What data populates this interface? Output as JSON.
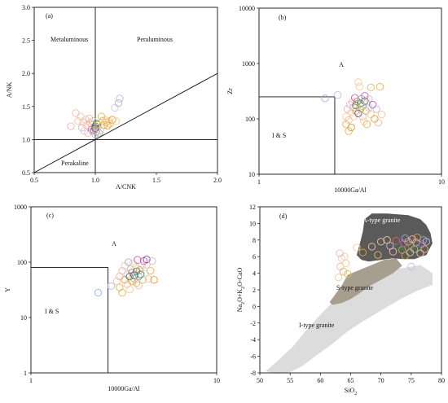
{
  "chart_data": [
    {
      "type": "scatter",
      "panel_label": "(a)",
      "xlabel": "A/CNK",
      "ylabel": "A/NK",
      "xlim": [
        0.5,
        2.0
      ],
      "ylim": [
        0.5,
        3.0
      ],
      "xticks": [
        "0.5",
        "1.0",
        "1.5",
        "2.0"
      ],
      "yticks": [
        "0.5",
        "1.0",
        "1.5",
        "2.0",
        "2.5",
        "3.0"
      ],
      "divider_vertical_x": 1.0,
      "divider_horizontal_y": 1.0,
      "divider_line": [
        [
          0.5,
          0.5
        ],
        [
          2.0,
          2.0
        ]
      ],
      "regions": [
        "Metaluminous",
        "Peraluminous",
        "Perakaline"
      ],
      "points": [
        {
          "x": 0.8,
          "y": 1.2,
          "c": "#f2b8b0"
        },
        {
          "x": 0.84,
          "y": 1.4,
          "c": "#f2b8b0"
        },
        {
          "x": 0.86,
          "y": 1.28,
          "c": "#f5c9a0"
        },
        {
          "x": 0.88,
          "y": 1.35,
          "c": "#f5c9a0"
        },
        {
          "x": 0.89,
          "y": 1.18,
          "c": "#d9b8e0"
        },
        {
          "x": 0.9,
          "y": 1.26,
          "c": "#f2b8b0"
        },
        {
          "x": 0.91,
          "y": 1.13,
          "c": "#f2b8b0"
        },
        {
          "x": 0.92,
          "y": 1.3,
          "c": "#f5c9a0"
        },
        {
          "x": 0.93,
          "y": 1.22,
          "c": "#f5c9a0"
        },
        {
          "x": 0.94,
          "y": 1.1,
          "c": "#f2b8b0"
        },
        {
          "x": 0.95,
          "y": 1.32,
          "c": "#f2b8b0"
        },
        {
          "x": 0.96,
          "y": 1.25,
          "c": "#d9b8e0"
        },
        {
          "x": 0.97,
          "y": 1.15,
          "c": "#c060c0"
        },
        {
          "x": 0.97,
          "y": 1.22,
          "c": "#f5c9a0"
        },
        {
          "x": 0.98,
          "y": 1.12,
          "c": "#c0c0e0"
        },
        {
          "x": 0.98,
          "y": 1.28,
          "c": "#f2b8b0"
        },
        {
          "x": 0.99,
          "y": 1.19,
          "c": "#d9b8e0"
        },
        {
          "x": 0.99,
          "y": 1.14,
          "c": "#e06c3a"
        },
        {
          "x": 1.0,
          "y": 1.2,
          "c": "#2e8b57"
        },
        {
          "x": 1.0,
          "y": 1.16,
          "c": "#e8a02c"
        },
        {
          "x": 1.01,
          "y": 1.24,
          "c": "#2e8b57"
        },
        {
          "x": 1.01,
          "y": 1.12,
          "c": "#8fb0d8"
        },
        {
          "x": 1.02,
          "y": 1.18,
          "c": "#c0c0e0"
        },
        {
          "x": 1.02,
          "y": 1.22,
          "c": "#e8a02c"
        },
        {
          "x": 1.03,
          "y": 1.1,
          "c": "#a0c080"
        },
        {
          "x": 1.0,
          "y": 1.17,
          "c": "#6b4e9b"
        },
        {
          "x": 1.05,
          "y": 1.35,
          "c": "#e8b85a"
        },
        {
          "x": 1.06,
          "y": 1.28,
          "c": "#e8b85a"
        },
        {
          "x": 1.07,
          "y": 1.22,
          "c": "#e8a02c"
        },
        {
          "x": 1.08,
          "y": 1.3,
          "c": "#f5c9a0"
        },
        {
          "x": 1.09,
          "y": 1.26,
          "c": "#e8b85a"
        },
        {
          "x": 1.1,
          "y": 1.21,
          "c": "#e8a02c"
        },
        {
          "x": 1.11,
          "y": 1.28,
          "c": "#f5c9a0"
        },
        {
          "x": 1.12,
          "y": 1.24,
          "c": "#e8b85a"
        },
        {
          "x": 1.14,
          "y": 1.3,
          "c": "#e8a02c"
        },
        {
          "x": 1.17,
          "y": 1.28,
          "c": "#f2d0a0"
        },
        {
          "x": 1.19,
          "y": 1.55,
          "c": "#9fb0e0"
        },
        {
          "x": 1.2,
          "y": 1.62,
          "c": "#c8b8e8"
        },
        {
          "x": 1.16,
          "y": 1.48,
          "c": "#d0c0e8"
        },
        {
          "x": 1.04,
          "y": 1.14,
          "c": "#f2b8b0"
        },
        {
          "x": 1.0,
          "y": 1.08,
          "c": "#c0c0e0"
        }
      ]
    },
    {
      "type": "scatter",
      "panel_label": "(b)",
      "xlabel": "10000Ga/Al",
      "ylabel": "Zr",
      "x_scale": "log",
      "y_scale": "log",
      "xlim": [
        1,
        10
      ],
      "ylim": [
        10,
        10000
      ],
      "xticks": [
        "1",
        "10"
      ],
      "yticks": [
        "10",
        "100",
        "1000",
        "10000"
      ],
      "box": {
        "x": 2.6,
        "y": 250
      },
      "regions": [
        "A",
        "I & S"
      ],
      "points": [
        {
          "x": 2.3,
          "y": 235,
          "c": "#9fb0e0"
        },
        {
          "x": 2.7,
          "y": 270,
          "c": "#c8b8e8"
        },
        {
          "x": 3.0,
          "y": 110,
          "c": "#f5c9a0"
        },
        {
          "x": 3.0,
          "y": 80,
          "c": "#e8b85a"
        },
        {
          "x": 3.05,
          "y": 150,
          "c": "#f2b8b0"
        },
        {
          "x": 3.1,
          "y": 60,
          "c": "#e8b85a"
        },
        {
          "x": 3.1,
          "y": 95,
          "c": "#f2b8b0"
        },
        {
          "x": 3.15,
          "y": 180,
          "c": "#d9b8e0"
        },
        {
          "x": 3.2,
          "y": 130,
          "c": "#f5c9a0"
        },
        {
          "x": 3.2,
          "y": 70,
          "c": "#e8a02c"
        },
        {
          "x": 3.25,
          "y": 200,
          "c": "#f2b8b0"
        },
        {
          "x": 3.3,
          "y": 160,
          "c": "#c0c0e0"
        },
        {
          "x": 3.3,
          "y": 110,
          "c": "#f5c9a0"
        },
        {
          "x": 3.35,
          "y": 240,
          "c": "#c060c0"
        },
        {
          "x": 3.4,
          "y": 175,
          "c": "#2e8b57"
        },
        {
          "x": 3.4,
          "y": 140,
          "c": "#e8a02c"
        },
        {
          "x": 3.45,
          "y": 205,
          "c": "#e06c3a"
        },
        {
          "x": 3.5,
          "y": 125,
          "c": "#6b4e9b"
        },
        {
          "x": 3.5,
          "y": 460,
          "c": "#f5c9a0"
        },
        {
          "x": 3.55,
          "y": 380,
          "c": "#f2d0a0"
        },
        {
          "x": 3.6,
          "y": 190,
          "c": "#2e8b57"
        },
        {
          "x": 3.6,
          "y": 150,
          "c": "#a0c080"
        },
        {
          "x": 3.65,
          "y": 230,
          "c": "#8fb0d8"
        },
        {
          "x": 3.7,
          "y": 170,
          "c": "#e8b85a"
        },
        {
          "x": 3.7,
          "y": 110,
          "c": "#f2b8b0"
        },
        {
          "x": 3.75,
          "y": 90,
          "c": "#f5c9a0"
        },
        {
          "x": 3.8,
          "y": 210,
          "c": "#2e8b57"
        },
        {
          "x": 3.8,
          "y": 260,
          "c": "#c060c0"
        },
        {
          "x": 3.85,
          "y": 140,
          "c": "#e8a02c"
        },
        {
          "x": 3.9,
          "y": 195,
          "c": "#d9b8e0"
        },
        {
          "x": 3.9,
          "y": 80,
          "c": "#e8b85a"
        },
        {
          "x": 4.0,
          "y": 160,
          "c": "#c0c0e0"
        },
        {
          "x": 4.0,
          "y": 230,
          "c": "#f2b8b0"
        },
        {
          "x": 4.1,
          "y": 120,
          "c": "#f5c9a0"
        },
        {
          "x": 4.1,
          "y": 370,
          "c": "#e8b85a"
        },
        {
          "x": 4.2,
          "y": 180,
          "c": "#c060c0"
        },
        {
          "x": 4.3,
          "y": 100,
          "c": "#e8a02c"
        },
        {
          "x": 4.4,
          "y": 150,
          "c": "#c8b8e8"
        },
        {
          "x": 4.5,
          "y": 85,
          "c": "#f2b8b0"
        },
        {
          "x": 4.6,
          "y": 380,
          "c": "#e8b85a"
        },
        {
          "x": 4.7,
          "y": 120,
          "c": "#f5c9a0"
        }
      ]
    },
    {
      "type": "scatter",
      "panel_label": "(c)",
      "xlabel": "10000Ga/Al",
      "ylabel": "Y",
      "x_scale": "log",
      "y_scale": "log",
      "xlim": [
        1,
        10
      ],
      "ylim": [
        1,
        1000
      ],
      "xticks": [
        "1",
        "10"
      ],
      "yticks": [
        "1",
        "10",
        "100",
        "1000"
      ],
      "box": {
        "x": 2.6,
        "y": 80
      },
      "regions": [
        "A",
        "I & S"
      ],
      "points": [
        {
          "x": 2.3,
          "y": 28,
          "c": "#9fb0e0"
        },
        {
          "x": 2.7,
          "y": 37,
          "c": "#c8b8e8"
        },
        {
          "x": 2.9,
          "y": 45,
          "c": "#f5c9a0"
        },
        {
          "x": 3.0,
          "y": 55,
          "c": "#f2b8b0"
        },
        {
          "x": 3.0,
          "y": 35,
          "c": "#e8b85a"
        },
        {
          "x": 3.1,
          "y": 70,
          "c": "#f2b8b0"
        },
        {
          "x": 3.1,
          "y": 28,
          "c": "#e8b85a"
        },
        {
          "x": 3.2,
          "y": 48,
          "c": "#e8a02c"
        },
        {
          "x": 3.2,
          "y": 85,
          "c": "#f5c9a0"
        },
        {
          "x": 3.3,
          "y": 60,
          "c": "#d9b8e0"
        },
        {
          "x": 3.3,
          "y": 40,
          "c": "#f2b8b0"
        },
        {
          "x": 3.35,
          "y": 100,
          "c": "#9fb0e0"
        },
        {
          "x": 3.4,
          "y": 55,
          "c": "#2e8b57"
        },
        {
          "x": 3.45,
          "y": 75,
          "c": "#c0c0e0"
        },
        {
          "x": 3.5,
          "y": 45,
          "c": "#e8a02c"
        },
        {
          "x": 3.5,
          "y": 65,
          "c": "#e06c3a"
        },
        {
          "x": 3.55,
          "y": 95,
          "c": "#f2d0a0"
        },
        {
          "x": 3.6,
          "y": 50,
          "c": "#a0c080"
        },
        {
          "x": 3.6,
          "y": 58,
          "c": "#6b4e9b"
        },
        {
          "x": 3.65,
          "y": 80,
          "c": "#f5c9a0"
        },
        {
          "x": 3.7,
          "y": 42,
          "c": "#e8b85a"
        },
        {
          "x": 3.7,
          "y": 68,
          "c": "#2e8b57"
        },
        {
          "x": 3.75,
          "y": 110,
          "c": "#c060c0"
        },
        {
          "x": 3.8,
          "y": 55,
          "c": "#8fb0d8"
        },
        {
          "x": 3.8,
          "y": 38,
          "c": "#f2b8b0"
        },
        {
          "x": 3.85,
          "y": 72,
          "c": "#e8a02c"
        },
        {
          "x": 3.9,
          "y": 60,
          "c": "#2e8b57"
        },
        {
          "x": 3.95,
          "y": 88,
          "c": "#f2b8b0"
        },
        {
          "x": 4.0,
          "y": 48,
          "c": "#e8b85a"
        },
        {
          "x": 4.05,
          "y": 105,
          "c": "#c060c0"
        },
        {
          "x": 4.1,
          "y": 62,
          "c": "#d9b8e0"
        },
        {
          "x": 4.2,
          "y": 112,
          "c": "#6b4e9b"
        },
        {
          "x": 4.3,
          "y": 50,
          "c": "#f5c9a0"
        },
        {
          "x": 4.4,
          "y": 70,
          "c": "#e8b85a"
        },
        {
          "x": 4.5,
          "y": 105,
          "c": "#c8b8e8"
        },
        {
          "x": 4.6,
          "y": 48,
          "c": "#e8a02c"
        },
        {
          "x": 4.2,
          "y": 90,
          "c": "#f2b8b0"
        },
        {
          "x": 3.4,
          "y": 32,
          "c": "#f5c9a0"
        }
      ]
    },
    {
      "type": "scatter",
      "panel_label": "(d)",
      "xlabel": "SiO2",
      "ylabel": "Na2O+K2O-CaO",
      "xlim": [
        50,
        80
      ],
      "ylim": [
        -8,
        12
      ],
      "xticks": [
        "50",
        "55",
        "60",
        "65",
        "70",
        "75",
        "80"
      ],
      "yticks": [
        "-8",
        "-6",
        "-4",
        "-2",
        "0",
        "2",
        "4",
        "6",
        "8",
        "10",
        "12"
      ],
      "fields": [
        {
          "name": "I-type granite",
          "color": "#dcdcdc"
        },
        {
          "name": "S-type granite",
          "color": "#a89e90"
        },
        {
          "name": "A-type granite",
          "color": "#5a5a5a"
        }
      ],
      "points": [
        {
          "x": 63.0,
          "y": 3.5,
          "c": "#f5c9a0"
        },
        {
          "x": 63.3,
          "y": 4.8,
          "c": "#f2b8b0"
        },
        {
          "x": 63.5,
          "y": 5.8,
          "c": "#f5c9a0"
        },
        {
          "x": 63.8,
          "y": 4.2,
          "c": "#e8b85a"
        },
        {
          "x": 64.0,
          "y": 6.0,
          "c": "#f2d0a0"
        },
        {
          "x": 64.2,
          "y": 5.2,
          "c": "#f5c9a0"
        },
        {
          "x": 63.2,
          "y": 6.4,
          "c": "#f2b8b0"
        },
        {
          "x": 64.5,
          "y": 3.9,
          "c": "#e8b85a"
        },
        {
          "x": 66.0,
          "y": 7.1,
          "c": "#f5c9a0"
        },
        {
          "x": 67.0,
          "y": 6.5,
          "c": "#e8a02c"
        },
        {
          "x": 68.5,
          "y": 7.2,
          "c": "#f2b8b0"
        },
        {
          "x": 70.0,
          "y": 7.8,
          "c": "#f5c9a0"
        },
        {
          "x": 69.5,
          "y": 6.2,
          "c": "#e8b85a"
        },
        {
          "x": 71.5,
          "y": 7.3,
          "c": "#c8b8e8"
        },
        {
          "x": 72.5,
          "y": 7.9,
          "c": "#e06c3a"
        },
        {
          "x": 73.0,
          "y": 7.2,
          "c": "#2e8b57"
        },
        {
          "x": 73.2,
          "y": 8.0,
          "c": "#6b4e9b"
        },
        {
          "x": 73.5,
          "y": 6.8,
          "c": "#e8a02c"
        },
        {
          "x": 73.8,
          "y": 7.6,
          "c": "#c060c0"
        },
        {
          "x": 74.0,
          "y": 8.2,
          "c": "#9fb0e0"
        },
        {
          "x": 74.2,
          "y": 7.0,
          "c": "#2e8b57"
        },
        {
          "x": 74.5,
          "y": 7.8,
          "c": "#e8b85a"
        },
        {
          "x": 74.8,
          "y": 6.5,
          "c": "#f2b8b0"
        },
        {
          "x": 75.0,
          "y": 7.4,
          "c": "#e06c3a"
        },
        {
          "x": 75.2,
          "y": 8.1,
          "c": "#d9b8e0"
        },
        {
          "x": 75.5,
          "y": 6.9,
          "c": "#a0c080"
        },
        {
          "x": 75.8,
          "y": 7.7,
          "c": "#c0c0e0"
        },
        {
          "x": 76.0,
          "y": 8.3,
          "c": "#e8a02c"
        },
        {
          "x": 76.2,
          "y": 7.1,
          "c": "#2e8b57"
        },
        {
          "x": 76.5,
          "y": 6.4,
          "c": "#f5c9a0"
        },
        {
          "x": 76.8,
          "y": 7.5,
          "c": "#c060c0"
        },
        {
          "x": 77.0,
          "y": 8.0,
          "c": "#8fb0d8"
        },
        {
          "x": 77.2,
          "y": 6.9,
          "c": "#e8b85a"
        },
        {
          "x": 77.5,
          "y": 7.8,
          "c": "#c8b8e8"
        },
        {
          "x": 74.0,
          "y": 6.1,
          "c": "#e8a02c"
        },
        {
          "x": 72.0,
          "y": 6.6,
          "c": "#f2b8b0"
        },
        {
          "x": 75.0,
          "y": 4.8,
          "c": "#c0c0e0"
        },
        {
          "x": 71.0,
          "y": 8.0,
          "c": "#f5c9a0"
        }
      ]
    }
  ]
}
